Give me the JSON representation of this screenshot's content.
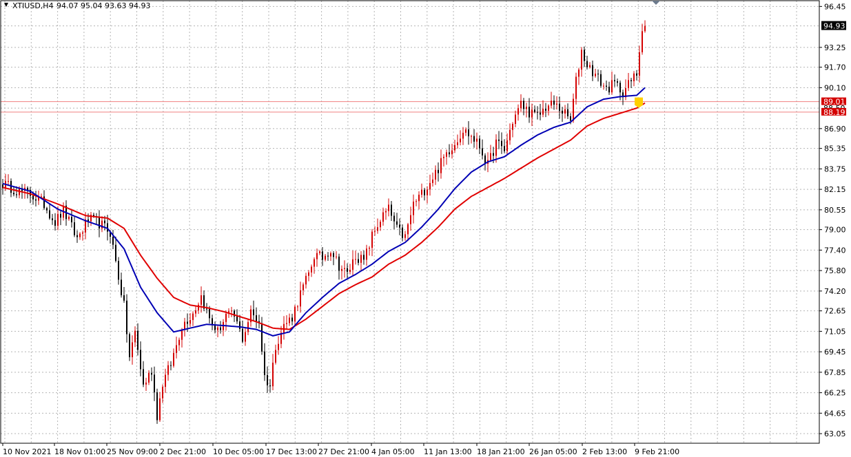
{
  "header": {
    "symbol": "XTIUSD,H4",
    "ohlc": "94.07 95.04 93.63 94.93"
  },
  "colors": {
    "bull": "#d40000",
    "bear": "#000000",
    "ma_fast": "#0000b4",
    "ma_slow": "#e00000",
    "hline": "#f08080",
    "grid": "#b4b4b4",
    "marker": "#ffd000"
  },
  "chart_data": {
    "type": "candlestick",
    "ylim": [
      62.3,
      96.9
    ],
    "yticks": [
      "96.45",
      "94.93",
      "93.25",
      "91.70",
      "90.10",
      "88.50",
      "86.90",
      "85.35",
      "83.75",
      "82.15",
      "80.55",
      "79.00",
      "77.40",
      "75.80",
      "74.20",
      "72.65",
      "71.05",
      "69.45",
      "67.85",
      "66.25",
      "64.65",
      "63.05"
    ],
    "xticks": [
      "10 Nov 2021",
      "18 Nov 01:00",
      "25 Nov 09:00",
      "2 Dec 21:00",
      "10 Dec 05:00",
      "17 Dec 13:00",
      "27 Dec 21:00",
      "4 Jan 05:00",
      "11 Jan 13:00",
      "18 Jan 21:00",
      "26 Jan 05:00",
      "2 Feb 13:00",
      "9 Feb 21:00"
    ],
    "price_path": [
      [
        0,
        82.6
      ],
      [
        6,
        82.0
      ],
      [
        10,
        81.8
      ],
      [
        15,
        81.0
      ],
      [
        19,
        79.6
      ],
      [
        22,
        80.5
      ],
      [
        27,
        78.3
      ],
      [
        31,
        79.8
      ],
      [
        35,
        79.5
      ],
      [
        39,
        78.8
      ],
      [
        44,
        73.0
      ],
      [
        46,
        69.0
      ],
      [
        48,
        71.0
      ],
      [
        51,
        66.8
      ],
      [
        54,
        68.0
      ],
      [
        56,
        64.5
      ],
      [
        58,
        67.0
      ],
      [
        61,
        68.5
      ],
      [
        65,
        71.5
      ],
      [
        69,
        72.5
      ],
      [
        72,
        73.8
      ],
      [
        75,
        72.0
      ],
      [
        78,
        71.0
      ],
      [
        81,
        72.3
      ],
      [
        84,
        72.2
      ],
      [
        87,
        70.5
      ],
      [
        90,
        72.5
      ],
      [
        93,
        71.8
      ],
      [
        95,
        67.5
      ],
      [
        97,
        66.8
      ],
      [
        99,
        70.0
      ],
      [
        102,
        71.5
      ],
      [
        105,
        72.2
      ],
      [
        108,
        74.0
      ],
      [
        111,
        75.5
      ],
      [
        113,
        77.0
      ],
      [
        116,
        76.8
      ],
      [
        119,
        77.5
      ],
      [
        122,
        76.2
      ],
      [
        125,
        75.5
      ],
      [
        128,
        77.0
      ],
      [
        131,
        76.5
      ],
      [
        134,
        78.5
      ],
      [
        137,
        79.8
      ],
      [
        140,
        80.6
      ],
      [
        143,
        79.0
      ],
      [
        146,
        78.4
      ],
      [
        149,
        81.0
      ],
      [
        152,
        81.8
      ],
      [
        155,
        82.8
      ],
      [
        158,
        83.8
      ],
      [
        161,
        85.0
      ],
      [
        164,
        85.8
      ],
      [
        167,
        86.8
      ],
      [
        170,
        86.3
      ],
      [
        173,
        85.5
      ],
      [
        176,
        84.0
      ],
      [
        179,
        85.8
      ],
      [
        182,
        85.2
      ],
      [
        185,
        87.5
      ],
      [
        188,
        88.8
      ],
      [
        191,
        88.2
      ],
      [
        194,
        87.8
      ],
      [
        197,
        88.6
      ],
      [
        200,
        88.8
      ],
      [
        203,
        88.3
      ],
      [
        206,
        87.5
      ],
      [
        208,
        90.6
      ],
      [
        210,
        93.0
      ],
      [
        212,
        91.9
      ],
      [
        214,
        91.4
      ],
      [
        216,
        90.8
      ],
      [
        219,
        90.0
      ],
      [
        222,
        90.4
      ],
      [
        225,
        89.8
      ],
      [
        228,
        90.6
      ],
      [
        230,
        91.2
      ],
      [
        232,
        94.93
      ]
    ],
    "ma_fast_path": [
      [
        0,
        82.6
      ],
      [
        10,
        82.0
      ],
      [
        20,
        80.6
      ],
      [
        30,
        79.7
      ],
      [
        38,
        79.1
      ],
      [
        44,
        77.5
      ],
      [
        50,
        74.5
      ],
      [
        56,
        72.5
      ],
      [
        62,
        71.0
      ],
      [
        68,
        71.3
      ],
      [
        74,
        71.6
      ],
      [
        80,
        71.5
      ],
      [
        86,
        71.4
      ],
      [
        92,
        71.2
      ],
      [
        98,
        70.7
      ],
      [
        104,
        71.0
      ],
      [
        110,
        72.5
      ],
      [
        116,
        73.7
      ],
      [
        122,
        74.8
      ],
      [
        128,
        75.5
      ],
      [
        134,
        76.3
      ],
      [
        140,
        77.3
      ],
      [
        146,
        78.0
      ],
      [
        152,
        79.2
      ],
      [
        158,
        80.6
      ],
      [
        164,
        82.2
      ],
      [
        170,
        83.5
      ],
      [
        176,
        84.3
      ],
      [
        182,
        84.7
      ],
      [
        188,
        85.6
      ],
      [
        194,
        86.4
      ],
      [
        200,
        87.0
      ],
      [
        206,
        87.4
      ],
      [
        212,
        88.6
      ],
      [
        218,
        89.2
      ],
      [
        224,
        89.4
      ],
      [
        230,
        89.5
      ],
      [
        233,
        90.1
      ]
    ],
    "ma_slow_path": [
      [
        0,
        82.3
      ],
      [
        10,
        81.8
      ],
      [
        20,
        81.0
      ],
      [
        30,
        80.1
      ],
      [
        38,
        79.9
      ],
      [
        44,
        79.1
      ],
      [
        50,
        77.0
      ],
      [
        56,
        75.2
      ],
      [
        62,
        73.7
      ],
      [
        68,
        73.1
      ],
      [
        74,
        72.9
      ],
      [
        80,
        72.6
      ],
      [
        86,
        72.2
      ],
      [
        92,
        71.8
      ],
      [
        98,
        71.3
      ],
      [
        104,
        71.2
      ],
      [
        110,
        72.0
      ],
      [
        116,
        73.0
      ],
      [
        122,
        74.0
      ],
      [
        128,
        74.7
      ],
      [
        134,
        75.3
      ],
      [
        140,
        76.3
      ],
      [
        146,
        77.0
      ],
      [
        152,
        78.0
      ],
      [
        158,
        79.2
      ],
      [
        164,
        80.6
      ],
      [
        170,
        81.6
      ],
      [
        176,
        82.3
      ],
      [
        182,
        83.0
      ],
      [
        188,
        83.8
      ],
      [
        194,
        84.6
      ],
      [
        200,
        85.3
      ],
      [
        206,
        86.0
      ],
      [
        212,
        87.1
      ],
      [
        218,
        87.7
      ],
      [
        224,
        88.1
      ],
      [
        230,
        88.5
      ],
      [
        233,
        88.9
      ]
    ],
    "price_labels": [
      {
        "value": 94.93,
        "text": "94.93",
        "style": "current"
      },
      {
        "value": 89.01,
        "text": "89.01",
        "style": "red"
      },
      {
        "value": 88.5,
        "text": "88.50",
        "style": "plain"
      },
      {
        "value": 88.19,
        "text": "88.19",
        "style": "red"
      }
    ],
    "hlines": [
      89.01,
      88.19
    ],
    "grid": true
  }
}
